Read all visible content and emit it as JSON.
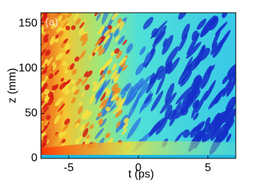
{
  "chart_data": {
    "type": "heatmap",
    "annotation": "(a)",
    "xlabel": "t (ps)",
    "ylabel": "z (mm)",
    "xlim": [
      -7,
      7
    ],
    "xticks": [
      -5,
      0,
      5
    ],
    "ylim": [
      0,
      162
    ],
    "yticks": [
      0,
      50,
      100,
      150
    ]
  }
}
